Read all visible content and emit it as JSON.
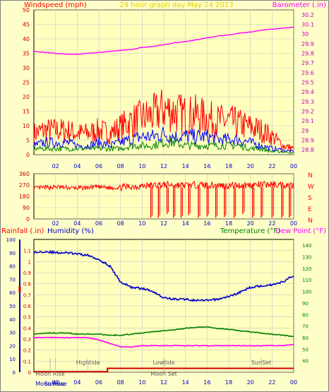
{
  "chart_data": [
    {
      "type": "line",
      "title": "24 hour graph day   May 24 2013",
      "ylabel_left": "Windspeed (mph)",
      "ylabel_right": "Barometer (.in)",
      "x_ticks": [
        "02",
        "04",
        "06",
        "08",
        "10",
        "12",
        "14",
        "16",
        "18",
        "20",
        "22",
        "00"
      ],
      "ylim_left": [
        0,
        50
      ],
      "yticks_left": [
        "0",
        "5",
        "10",
        "15",
        "20",
        "25",
        "30",
        "35",
        "40",
        "45",
        "50"
      ],
      "ylim_right": [
        28.75,
        30.25
      ],
      "yticks_right": [
        "28.8",
        "28.9",
        "29",
        "29.1",
        "29.2",
        "29.3",
        "29.4",
        "29.5",
        "29.6",
        "29.7",
        "29.8",
        "29.9",
        "30",
        "30.1",
        "30.2"
      ],
      "series": [
        {
          "color": "#ff0000",
          "x": [
            0,
            1,
            2,
            3,
            4,
            5,
            6,
            7,
            8,
            9,
            10,
            11,
            12,
            13,
            14,
            15,
            16,
            17,
            18,
            19,
            20,
            21,
            22,
            23,
            24
          ],
          "values": [
            7,
            8,
            8,
            8,
            7,
            7,
            8,
            7,
            9,
            11,
            12,
            13,
            15,
            14,
            13,
            13,
            12,
            11,
            11,
            10,
            9,
            8,
            6,
            3,
            2
          ]
        },
        {
          "color": "#0000ff",
          "x": [
            0,
            1,
            2,
            3,
            4,
            5,
            6,
            7,
            8,
            9,
            10,
            11,
            12,
            13,
            14,
            15,
            16,
            17,
            18,
            19,
            20,
            21,
            22,
            23,
            24
          ],
          "values": [
            3,
            4,
            4,
            4,
            3,
            3,
            4,
            3,
            4,
            5,
            6,
            6,
            7,
            6,
            6,
            6,
            6,
            5,
            5,
            5,
            4,
            3,
            2,
            1.5,
            1
          ]
        },
        {
          "color": "#008000",
          "x": [
            0,
            1,
            2,
            3,
            4,
            5,
            6,
            7,
            8,
            9,
            10,
            11,
            12,
            13,
            14,
            15,
            16,
            17,
            18,
            19,
            20,
            21,
            22,
            23,
            24
          ],
          "values": [
            2,
            2,
            2,
            2,
            2,
            2,
            2,
            2,
            2,
            3,
            3,
            3,
            4,
            4,
            3,
            3,
            3,
            3,
            3,
            3,
            2,
            2,
            1,
            1,
            0.5
          ]
        },
        {
          "color": "#ff00ff",
          "x": [
            0,
            1,
            2,
            3,
            4,
            5,
            6,
            7,
            8,
            9,
            10,
            11,
            12,
            13,
            14,
            15,
            16,
            17,
            18,
            19,
            20,
            21,
            22,
            23,
            24
          ],
          "values": [
            29.82,
            29.81,
            29.8,
            29.79,
            29.79,
            29.8,
            29.81,
            29.82,
            29.83,
            29.84,
            29.86,
            29.87,
            29.89,
            29.91,
            29.92,
            29.94,
            29.96,
            29.98,
            29.99,
            30.01,
            30.02,
            30.04,
            30.05,
            30.06,
            30.07
          ]
        }
      ]
    },
    {
      "type": "line",
      "x_ticks": [
        "02",
        "04",
        "06",
        "08",
        "10",
        "12",
        "14",
        "16",
        "18",
        "20",
        "22",
        "00"
      ],
      "ylim": [
        0,
        360
      ],
      "yticks": [
        "0",
        "90",
        "180",
        "270",
        "360"
      ],
      "right_labels": [
        "N",
        "W",
        "S",
        "E",
        "N"
      ],
      "series": [
        {
          "color": "#ff0000",
          "x": [
            0,
            1,
            2,
            3,
            4,
            5,
            6,
            7,
            8,
            9,
            10,
            11,
            12,
            13,
            14,
            15,
            16,
            17,
            18,
            19,
            20,
            21,
            22,
            23,
            24
          ],
          "values": [
            245,
            250,
            255,
            250,
            245,
            250,
            255,
            248,
            252,
            258,
            262,
            268,
            272,
            270,
            268,
            272,
            270,
            268,
            265,
            268,
            270,
            272,
            275,
            272,
            270
          ]
        }
      ],
      "dips": [
        {
          "x": 10.8,
          "to": 10
        },
        {
          "x": 11.5,
          "to": 10
        },
        {
          "x": 12.3,
          "to": 40
        },
        {
          "x": 12.9,
          "to": 10
        },
        {
          "x": 13.6,
          "to": 10
        },
        {
          "x": 14.3,
          "to": 30
        },
        {
          "x": 15.2,
          "to": 10
        },
        {
          "x": 16.0,
          "to": 20
        },
        {
          "x": 16.8,
          "to": 10
        },
        {
          "x": 17.6,
          "to": 15
        },
        {
          "x": 18.5,
          "to": 10
        },
        {
          "x": 19.3,
          "to": 40
        },
        {
          "x": 20.2,
          "to": 10
        },
        {
          "x": 21.0,
          "to": 10
        },
        {
          "x": 22.0,
          "to": 10
        },
        {
          "x": 22.9,
          "to": 10
        },
        {
          "x": 23.6,
          "to": 10
        }
      ]
    },
    {
      "type": "line",
      "ylabel_left_1": "Rainfall (.in)",
      "ylabel_left_2": "Humidity (%)",
      "ylabel_right_1": "Temperature (°F)",
      "ylabel_right_2": "Dew Point (°F)",
      "x_ticks": [
        "02",
        "04",
        "06",
        "08",
        "10",
        "12",
        "14",
        "16",
        "18",
        "20",
        "22",
        "00"
      ],
      "ylim_rain": [
        0,
        1.2
      ],
      "yticks_rain": [
        "0",
        "0.1",
        "0.2",
        "0.3",
        "0.4",
        "0.5",
        "0.6",
        "0.7",
        "0.8",
        "0.9",
        "1",
        "1.1"
      ],
      "ylim_humidity": [
        0,
        100
      ],
      "yticks_humidity": [
        "0",
        "10",
        "20",
        "30",
        "40",
        "50",
        "60",
        "70",
        "80",
        "90",
        "100"
      ],
      "ylim_temp": [
        30,
        145
      ],
      "yticks_temp": [
        "40",
        "50",
        "60",
        "70",
        "80",
        "90",
        "100",
        "110",
        "120",
        "130",
        "140"
      ],
      "series": [
        {
          "color": "#0000c8",
          "x": [
            0,
            1,
            2,
            3,
            4,
            5,
            6,
            7,
            8,
            9,
            10,
            11,
            12,
            13,
            14,
            15,
            16,
            17,
            18,
            19,
            20,
            21,
            22,
            23,
            24
          ],
          "values": [
            90,
            91,
            90,
            90,
            89,
            88,
            85,
            80,
            68,
            64,
            63,
            61,
            56,
            55,
            55,
            54,
            54,
            55,
            57,
            60,
            64,
            65,
            66,
            68,
            73
          ]
        },
        {
          "color": "#008000",
          "x": [
            0,
            1,
            2,
            3,
            4,
            5,
            6,
            7,
            8,
            9,
            10,
            11,
            12,
            13,
            14,
            15,
            16,
            17,
            18,
            19,
            20,
            21,
            22,
            23,
            24
          ],
          "values": [
            63,
            64,
            64,
            64,
            63,
            63,
            63,
            62,
            62,
            63,
            64,
            65,
            66,
            67,
            68,
            69,
            69,
            68,
            67,
            66,
            65,
            64,
            63,
            62,
            61
          ]
        },
        {
          "color": "#ff00ff",
          "x": [
            0,
            1,
            2,
            3,
            4,
            5,
            6,
            7,
            8,
            9,
            10,
            11,
            12,
            13,
            14,
            15,
            16,
            17,
            18,
            19,
            20,
            21,
            22,
            23,
            24
          ],
          "values": [
            60,
            60,
            60,
            60,
            60,
            60,
            58,
            55,
            52,
            52,
            53,
            53,
            53,
            53,
            53,
            53,
            53,
            53,
            53,
            53,
            53,
            53,
            53,
            53,
            54
          ]
        },
        {
          "color": "#cc0000",
          "x": [
            0,
            1,
            2,
            3,
            4,
            5,
            6,
            7,
            8,
            9,
            10,
            11,
            12,
            13,
            14,
            15,
            16,
            17,
            18,
            19,
            20,
            21,
            22,
            23,
            24
          ],
          "values": [
            0,
            0,
            0,
            0,
            0,
            0,
            0,
            0.04,
            0.04,
            0.04,
            0.04,
            0.04,
            0.04,
            0.04,
            0.04,
            0.04,
            0.04,
            0.04,
            0.04,
            0.04,
            0.04,
            0.04,
            0.04,
            0.04,
            0.04
          ]
        }
      ],
      "annotations": [
        {
          "text": "Moon Rise",
          "x": 1.5,
          "row": 1
        },
        {
          "text": "Hightide",
          "x": 5.0,
          "row": 0
        },
        {
          "text": "Lowtide",
          "x": 12.0,
          "row": 0
        },
        {
          "text": "Moon Set",
          "x": 12.0,
          "row": 1
        },
        {
          "text": "SunSet",
          "x": 21.0,
          "row": 0
        },
        {
          "text": "Moon Rise",
          "x": 1.5,
          "row": 2
        },
        {
          "text": "SunRise",
          "x": 2.0,
          "row": 2
        }
      ]
    }
  ]
}
